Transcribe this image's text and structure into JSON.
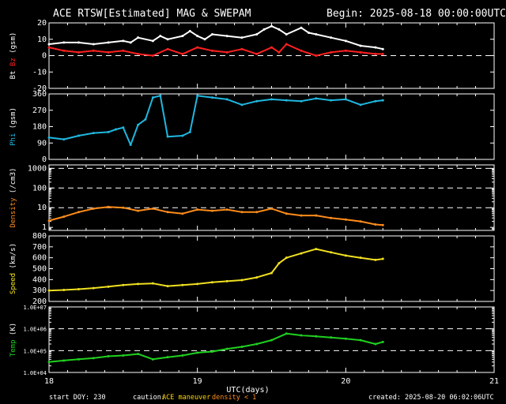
{
  "header": {
    "title": "ACE RTSW[Estimated] MAG & SWEPAM",
    "begin": "Begin: 2025-08-18 00:00:00UTC"
  },
  "footer": {
    "start_doy": "start DOY: 230",
    "caution_label": "caution:",
    "caution_maneuver": "ACE maneuver",
    "caution_density": "density < 1",
    "created": "created: 2025-08-20 06:02:06UTC"
  },
  "colors": {
    "background": "#000000",
    "bt": "#ffffff",
    "bz": "#ff2020",
    "phi": "#20b8e0",
    "density": "#ff8c1a",
    "speed": "#f0e020",
    "temp": "#20d020",
    "axis": "#ffffff"
  },
  "chart_data": {
    "type": "scatter",
    "x_axis": {
      "label": "UTC(days)",
      "range": [
        18,
        21
      ],
      "ticks": [
        "18",
        "19",
        "20",
        "21"
      ]
    },
    "panels": [
      {
        "key": "mag",
        "ylabel_parts": [
          "Bt",
          "Bz",
          "(gsm)"
        ],
        "ylim": [
          -20,
          20
        ],
        "scale": "linear",
        "ticks": [
          -20,
          -10,
          0,
          10,
          20
        ],
        "tick_labels": [
          "-20",
          "-10",
          "0",
          "10",
          "20"
        ],
        "dashed_lines": [
          0
        ],
        "series": [
          {
            "name": "Bt",
            "color_key": "bt",
            "x": [
              18.0,
              18.1,
              18.2,
              18.3,
              18.4,
              18.5,
              18.55,
              18.6,
              18.7,
              18.75,
              18.8,
              18.9,
              18.95,
              19.0,
              19.05,
              19.1,
              19.2,
              19.3,
              19.4,
              19.45,
              19.5,
              19.55,
              19.6,
              19.7,
              19.75,
              19.8,
              19.9,
              20.0,
              20.1,
              20.2,
              20.25
            ],
            "y": [
              7,
              8,
              8,
              7,
              8,
              9,
              8,
              11,
              9,
              12,
              10,
              12,
              15,
              12,
              10,
              13,
              12,
              11,
              13,
              16,
              18,
              16,
              13,
              17,
              14,
              13,
              11,
              9,
              6,
              5,
              4
            ]
          },
          {
            "name": "Bz",
            "color_key": "bz",
            "x": [
              18.0,
              18.1,
              18.2,
              18.3,
              18.4,
              18.5,
              18.6,
              18.7,
              18.8,
              18.9,
              19.0,
              19.1,
              19.2,
              19.3,
              19.4,
              19.5,
              19.55,
              19.6,
              19.7,
              19.8,
              19.9,
              20.0,
              20.1,
              20.2,
              20.25
            ],
            "y": [
              5,
              3,
              2,
              3,
              2,
              3,
              1,
              0,
              4,
              1,
              5,
              3,
              2,
              4,
              1,
              5,
              2,
              7,
              3,
              0,
              2,
              3,
              2,
              1,
              1
            ]
          }
        ]
      },
      {
        "key": "phi",
        "ylabel_parts": [
          "Phi",
          "(gsm)"
        ],
        "ylim": [
          0,
          360
        ],
        "scale": "linear",
        "ticks": [
          0,
          90,
          180,
          270,
          360
        ],
        "tick_labels": [
          "0",
          "90",
          "180",
          "270",
          "360"
        ],
        "dashed_lines": [],
        "series": [
          {
            "name": "Phi",
            "color_key": "phi",
            "x": [
              18.0,
              18.1,
              18.2,
              18.3,
              18.4,
              18.45,
              18.5,
              18.55,
              18.6,
              18.65,
              18.7,
              18.75,
              18.8,
              18.9,
              18.95,
              19.0,
              19.1,
              19.2,
              19.3,
              19.4,
              19.5,
              19.6,
              19.7,
              19.8,
              19.9,
              20.0,
              20.1,
              20.2,
              20.25
            ],
            "y": [
              120,
              110,
              130,
              145,
              150,
              165,
              175,
              80,
              190,
              220,
              340,
              350,
              125,
              130,
              150,
              350,
              340,
              330,
              300,
              320,
              330,
              325,
              320,
              335,
              325,
              330,
              300,
              320,
              325
            ]
          }
        ]
      },
      {
        "key": "density",
        "ylabel_parts": [
          "Density",
          "(/cm3)"
        ],
        "ylim": [
          0.7,
          1500
        ],
        "scale": "log",
        "ticks": [
          1,
          10,
          100,
          1000
        ],
        "tick_labels": [
          "1",
          "10",
          "100",
          "1000"
        ],
        "dashed_lines": [
          10,
          100,
          1000
        ],
        "series": [
          {
            "name": "Density",
            "color_key": "density",
            "x": [
              18.0,
              18.1,
              18.2,
              18.3,
              18.4,
              18.5,
              18.6,
              18.7,
              18.8,
              18.9,
              19.0,
              19.1,
              19.2,
              19.3,
              19.4,
              19.5,
              19.6,
              19.7,
              19.8,
              19.9,
              20.0,
              20.1,
              20.2,
              20.25
            ],
            "y": [
              2.2,
              3.5,
              6,
              9,
              11,
              10,
              7,
              9,
              6,
              5,
              8,
              7,
              8,
              6,
              6,
              9,
              5,
              4,
              4,
              3,
              2.5,
              2,
              1.4,
              1.3
            ]
          }
        ]
      },
      {
        "key": "speed",
        "ylabel_parts": [
          "Speed",
          "(km/s)"
        ],
        "ylim": [
          200,
          800
        ],
        "scale": "linear",
        "ticks": [
          200,
          300,
          400,
          500,
          600,
          700,
          800
        ],
        "tick_labels": [
          "200",
          "300",
          "400",
          "500",
          "600",
          "700",
          "800"
        ],
        "dashed_lines": [],
        "series": [
          {
            "name": "Speed",
            "color_key": "speed",
            "x": [
              18.0,
              18.1,
              18.2,
              18.3,
              18.4,
              18.5,
              18.6,
              18.7,
              18.8,
              18.9,
              19.0,
              19.1,
              19.2,
              19.3,
              19.4,
              19.5,
              19.55,
              19.6,
              19.7,
              19.8,
              19.9,
              20.0,
              20.1,
              20.2,
              20.25
            ],
            "y": [
              300,
              305,
              312,
              322,
              335,
              350,
              360,
              365,
              340,
              350,
              360,
              375,
              385,
              395,
              420,
              460,
              550,
              600,
              640,
              680,
              650,
              620,
              600,
              580,
              590
            ]
          }
        ]
      },
      {
        "key": "temp",
        "ylabel_parts": [
          "Temp",
          "(K)"
        ],
        "ylim": [
          10000,
          10000000
        ],
        "scale": "log",
        "ticks": [
          10000,
          100000,
          1000000,
          10000000
        ],
        "tick_labels": [
          "1.0E+04",
          "1.0E+05",
          "1.0E+06",
          "1.0E+07"
        ],
        "dashed_lines": [
          100000,
          1000000
        ],
        "series": [
          {
            "name": "Temp",
            "color_key": "temp",
            "x": [
              18.0,
              18.1,
              18.2,
              18.3,
              18.4,
              18.5,
              18.6,
              18.7,
              18.8,
              18.9,
              19.0,
              19.1,
              19.2,
              19.3,
              19.4,
              19.5,
              19.6,
              19.7,
              19.8,
              19.9,
              20.0,
              20.1,
              20.2,
              20.25
            ],
            "y": [
              30000,
              35000,
              40000,
              45000,
              55000,
              60000,
              70000,
              40000,
              50000,
              60000,
              80000,
              90000,
              120000,
              150000,
              200000,
              300000,
              600000,
              500000,
              450000,
              400000,
              350000,
              300000,
              200000,
              250000
            ]
          }
        ]
      }
    ]
  }
}
